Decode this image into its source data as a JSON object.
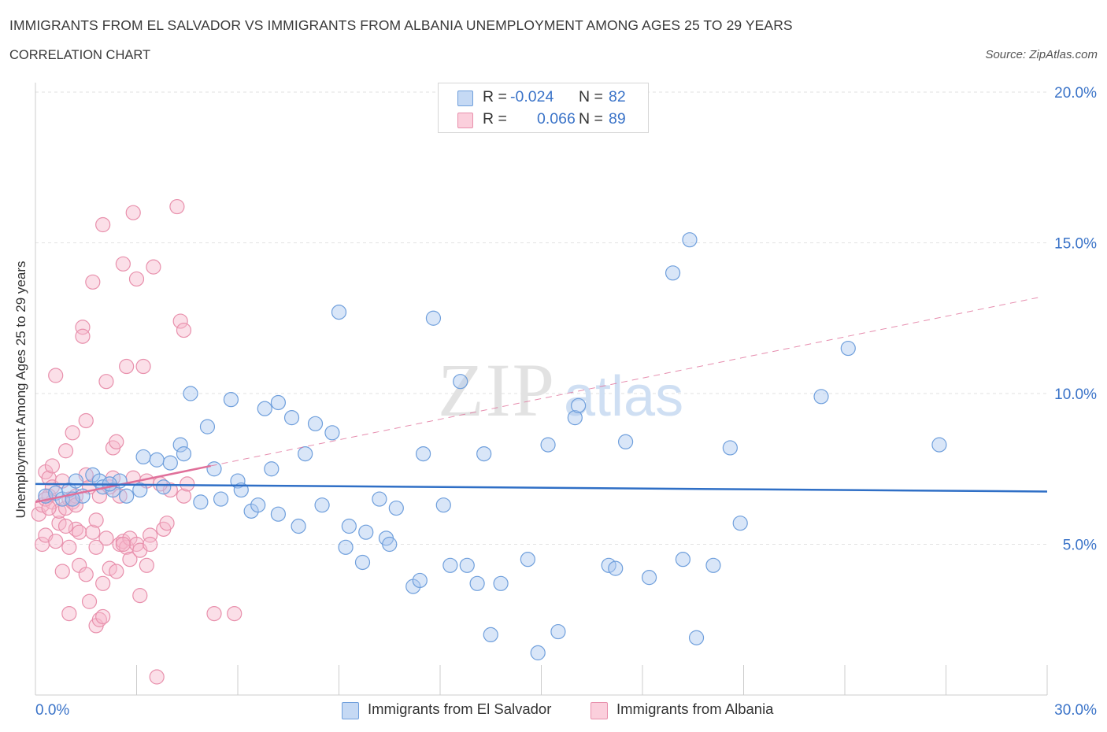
{
  "title": "IMMIGRANTS FROM EL SALVADOR VS IMMIGRANTS FROM ALBANIA UNEMPLOYMENT AMONG AGES 25 TO 29 YEARS",
  "subtitle": "CORRELATION CHART",
  "source": "Source: ZipAtlas.com",
  "watermark": {
    "zip": "ZIP",
    "atlas": "atlas"
  },
  "legend": {
    "rows": [
      {
        "r_label": "R =",
        "r_value": "-0.024",
        "n_label": "N =",
        "n_value": "82"
      },
      {
        "r_label": "R =",
        "r_value": "0.066",
        "n_label": "N =",
        "n_value": "89"
      }
    ]
  },
  "bottom_legend": [
    {
      "label": "Immigrants from El Salvador"
    },
    {
      "label": "Immigrants from Albania"
    }
  ],
  "colors": {
    "blue_fill": "#aac8f0",
    "blue_stroke": "#6f9fdc",
    "blue_line": "#2f6fc6",
    "pink_fill": "#f7b9cb",
    "pink_stroke": "#e890ac",
    "pink_line": "#e0709a",
    "axis_label": "#3a73c8",
    "grid": "#e2e2e2"
  },
  "chart_data": {
    "type": "scatter",
    "title": "IMMIGRANTS FROM EL SALVADOR VS IMMIGRANTS FROM ALBANIA UNEMPLOYMENT AMONG AGES 25 TO 29 YEARS",
    "xlabel": "",
    "ylabel": "Unemployment Among Ages 25 to 29 years",
    "xlim": [
      0,
      30
    ],
    "ylim": [
      0,
      20
    ],
    "x_tick_labels": [
      {
        "value": 0,
        "label": "0.0%"
      },
      {
        "value": 30,
        "label": "30.0%"
      }
    ],
    "x_minor_ticks": [
      3,
      6,
      9,
      12,
      15,
      18,
      21,
      24,
      27,
      30
    ],
    "y_tick_labels": [
      {
        "value": 5,
        "label": "5.0%"
      },
      {
        "value": 10,
        "label": "10.0%"
      },
      {
        "value": 15,
        "label": "15.0%"
      },
      {
        "value": 20,
        "label": "20.0%"
      }
    ],
    "series": [
      {
        "name": "Immigrants from El Salvador",
        "color": "blue",
        "trend": {
          "x0": 0,
          "y0": 7.0,
          "x1": 30,
          "y1": 6.75,
          "style": "solid"
        },
        "points": [
          [
            0.3,
            6.6
          ],
          [
            0.6,
            6.7
          ],
          [
            0.8,
            6.5
          ],
          [
            1.0,
            6.8
          ],
          [
            1.2,
            7.1
          ],
          [
            1.4,
            6.6
          ],
          [
            1.7,
            7.3
          ],
          [
            1.9,
            7.1
          ],
          [
            2.0,
            6.9
          ],
          [
            2.3,
            6.8
          ],
          [
            2.5,
            7.1
          ],
          [
            2.7,
            6.6
          ],
          [
            3.1,
            6.8
          ],
          [
            3.2,
            7.9
          ],
          [
            3.6,
            7.8
          ],
          [
            3.8,
            6.9
          ],
          [
            4.0,
            7.7
          ],
          [
            4.3,
            8.3
          ],
          [
            4.4,
            8.0
          ],
          [
            4.6,
            10.0
          ],
          [
            4.9,
            6.4
          ],
          [
            5.1,
            8.9
          ],
          [
            5.3,
            7.5
          ],
          [
            5.5,
            6.5
          ],
          [
            5.8,
            9.8
          ],
          [
            6.0,
            7.1
          ],
          [
            6.1,
            6.8
          ],
          [
            6.4,
            6.1
          ],
          [
            6.6,
            6.3
          ],
          [
            6.8,
            9.5
          ],
          [
            7.0,
            7.5
          ],
          [
            7.2,
            9.7
          ],
          [
            7.2,
            6.0
          ],
          [
            7.6,
            9.2
          ],
          [
            7.8,
            5.6
          ],
          [
            8.0,
            8.0
          ],
          [
            8.3,
            9.0
          ],
          [
            8.5,
            6.3
          ],
          [
            8.8,
            8.7
          ],
          [
            9.0,
            12.7
          ],
          [
            9.2,
            4.9
          ],
          [
            9.3,
            5.6
          ],
          [
            9.7,
            4.4
          ],
          [
            9.8,
            5.4
          ],
          [
            10.2,
            6.5
          ],
          [
            10.4,
            5.2
          ],
          [
            10.5,
            5.0
          ],
          [
            10.7,
            6.2
          ],
          [
            11.2,
            3.6
          ],
          [
            11.4,
            3.8
          ],
          [
            11.5,
            8.0
          ],
          [
            11.8,
            12.5
          ],
          [
            12.1,
            6.3
          ],
          [
            12.3,
            4.3
          ],
          [
            12.6,
            10.4
          ],
          [
            12.8,
            4.3
          ],
          [
            13.1,
            3.7
          ],
          [
            13.3,
            8.0
          ],
          [
            13.5,
            2.0
          ],
          [
            13.8,
            3.7
          ],
          [
            14.6,
            4.5
          ],
          [
            14.9,
            1.4
          ],
          [
            15.2,
            8.3
          ],
          [
            15.5,
            2.1
          ],
          [
            16.0,
            9.2
          ],
          [
            16.1,
            9.6
          ],
          [
            17.0,
            4.3
          ],
          [
            17.2,
            4.2
          ],
          [
            17.5,
            8.4
          ],
          [
            18.2,
            3.9
          ],
          [
            18.9,
            14.0
          ],
          [
            19.2,
            4.5
          ],
          [
            19.4,
            15.1
          ],
          [
            19.6,
            1.9
          ],
          [
            20.1,
            4.3
          ],
          [
            20.6,
            8.2
          ],
          [
            20.9,
            5.7
          ],
          [
            23.3,
            9.9
          ],
          [
            24.1,
            11.5
          ],
          [
            26.8,
            8.3
          ],
          [
            2.2,
            7.0
          ],
          [
            1.1,
            6.5
          ]
        ]
      },
      {
        "name": "Immigrants from Albania",
        "color": "pink",
        "trend": {
          "x0": 0,
          "y0": 6.4,
          "x1": 5.2,
          "y1": 7.6,
          "style": "solid",
          "extended": {
            "x1": 29.8,
            "y1": 13.2,
            "style": "dashed"
          }
        },
        "points": [
          [
            0.1,
            6.0
          ],
          [
            0.2,
            6.3
          ],
          [
            0.2,
            5.0
          ],
          [
            0.3,
            7.4
          ],
          [
            0.3,
            5.3
          ],
          [
            0.4,
            6.6
          ],
          [
            0.4,
            7.2
          ],
          [
            0.5,
            6.4
          ],
          [
            0.5,
            7.6
          ],
          [
            0.5,
            6.9
          ],
          [
            0.6,
            10.6
          ],
          [
            0.7,
            5.7
          ],
          [
            0.7,
            6.1
          ],
          [
            0.8,
            7.1
          ],
          [
            0.8,
            4.1
          ],
          [
            0.9,
            8.1
          ],
          [
            0.9,
            6.2
          ],
          [
            1.0,
            6.5
          ],
          [
            1.0,
            4.9
          ],
          [
            1.0,
            2.7
          ],
          [
            1.1,
            6.4
          ],
          [
            1.1,
            8.7
          ],
          [
            1.2,
            5.5
          ],
          [
            1.2,
            6.6
          ],
          [
            1.3,
            5.4
          ],
          [
            1.3,
            4.3
          ],
          [
            1.4,
            12.2
          ],
          [
            1.4,
            11.9
          ],
          [
            1.5,
            9.1
          ],
          [
            1.5,
            4.0
          ],
          [
            1.6,
            6.9
          ],
          [
            1.6,
            3.1
          ],
          [
            1.7,
            13.7
          ],
          [
            1.7,
            5.4
          ],
          [
            1.8,
            5.8
          ],
          [
            1.8,
            2.3
          ],
          [
            1.8,
            4.9
          ],
          [
            1.9,
            6.6
          ],
          [
            1.9,
            2.5
          ],
          [
            2.0,
            15.6
          ],
          [
            2.0,
            3.7
          ],
          [
            2.0,
            2.6
          ],
          [
            2.1,
            5.2
          ],
          [
            2.1,
            10.4
          ],
          [
            2.2,
            4.2
          ],
          [
            2.2,
            6.9
          ],
          [
            2.3,
            8.2
          ],
          [
            2.4,
            8.4
          ],
          [
            2.4,
            4.1
          ],
          [
            2.5,
            6.6
          ],
          [
            2.5,
            5.0
          ],
          [
            2.6,
            5.1
          ],
          [
            2.7,
            10.9
          ],
          [
            2.7,
            4.9
          ],
          [
            2.8,
            5.2
          ],
          [
            2.8,
            4.5
          ],
          [
            2.9,
            16.0
          ],
          [
            2.9,
            7.2
          ],
          [
            3.0,
            5.0
          ],
          [
            3.0,
            13.8
          ],
          [
            3.1,
            3.3
          ],
          [
            3.1,
            4.8
          ],
          [
            3.2,
            10.9
          ],
          [
            3.3,
            4.3
          ],
          [
            3.4,
            5.3
          ],
          [
            3.4,
            5.0
          ],
          [
            3.5,
            14.2
          ],
          [
            3.6,
            0.6
          ],
          [
            3.8,
            5.5
          ],
          [
            3.9,
            5.7
          ],
          [
            4.0,
            6.8
          ],
          [
            4.2,
            16.2
          ],
          [
            4.3,
            12.4
          ],
          [
            4.4,
            12.1
          ],
          [
            4.4,
            6.6
          ],
          [
            4.5,
            7.0
          ],
          [
            5.3,
            2.7
          ],
          [
            5.9,
            2.7
          ],
          [
            3.3,
            7.1
          ],
          [
            2.6,
            14.3
          ],
          [
            1.5,
            7.3
          ],
          [
            0.6,
            5.1
          ],
          [
            0.9,
            5.6
          ],
          [
            1.2,
            6.3
          ],
          [
            2.3,
            7.2
          ],
          [
            2.6,
            5.0
          ],
          [
            3.7,
            7.0
          ],
          [
            0.3,
            6.5
          ],
          [
            0.4,
            6.2
          ]
        ]
      }
    ]
  }
}
